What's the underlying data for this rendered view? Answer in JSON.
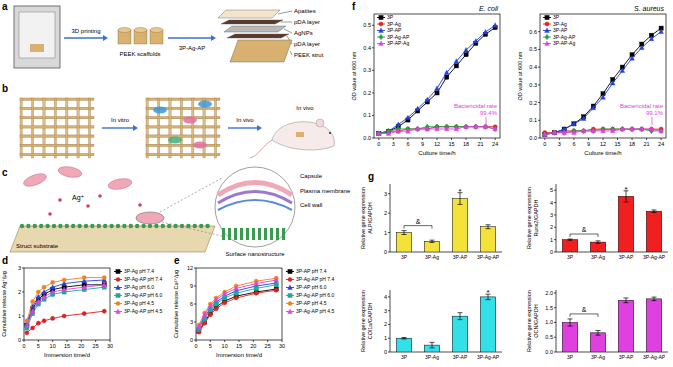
{
  "chart_data": [
    {
      "type": "line",
      "panel": "d",
      "xlabel": "Immersion time/d",
      "ylabel": "Cumulative release Ag⁺/μg",
      "x": [
        1,
        3,
        5,
        7,
        10,
        14,
        21,
        28
      ],
      "xlim": [
        0,
        30
      ],
      "xticks": [
        0,
        5,
        10,
        15,
        20,
        25,
        30
      ],
      "ylim": [
        0,
        3
      ],
      "yticks": [
        0,
        1,
        2,
        3
      ],
      "grid": false,
      "legend": "right",
      "series": [
        {
          "name": "3P-Ag pH 7.4",
          "color": "#000000",
          "marker": "square",
          "values": [
            0.6,
            1.3,
            1.7,
            1.9,
            2.1,
            2.2,
            2.3,
            2.3
          ]
        },
        {
          "name": "3P-Ag-AP pH 7.4",
          "color": "#e02020",
          "marker": "circle",
          "values": [
            0.3,
            0.5,
            0.7,
            0.8,
            0.9,
            1.0,
            1.1,
            1.2
          ]
        },
        {
          "name": "3P-Ag pH 6.0",
          "color": "#2040e0",
          "marker": "triangle",
          "values": [
            0.7,
            1.4,
            1.8,
            2.0,
            2.2,
            2.35,
            2.45,
            2.5
          ]
        },
        {
          "name": "3P-Ag-AP pH 6.0",
          "color": "#20a8a0",
          "marker": "square",
          "values": [
            0.5,
            1.1,
            1.5,
            1.7,
            1.9,
            2.0,
            2.1,
            2.2
          ]
        },
        {
          "name": "3P-Ag pH 4.5",
          "color": "#f08020",
          "marker": "circle",
          "values": [
            0.8,
            1.6,
            2.0,
            2.2,
            2.4,
            2.5,
            2.6,
            2.6
          ]
        },
        {
          "name": "3P-Ag-AP pH 4.5",
          "color": "#e040e0",
          "marker": "triangle",
          "values": [
            0.6,
            1.2,
            1.6,
            1.8,
            2.0,
            2.1,
            2.2,
            2.3
          ]
        }
      ]
    },
    {
      "type": "line",
      "panel": "e",
      "xlabel": "Immersion time/d",
      "ylabel": "Cumulative release Ca²⁺/μg",
      "x": [
        1,
        3,
        5,
        7,
        10,
        14,
        21,
        28
      ],
      "xlim": [
        0,
        30
      ],
      "xticks": [
        0,
        5,
        10,
        15,
        20,
        25,
        30
      ],
      "ylim": [
        0,
        12
      ],
      "yticks": [
        0,
        3,
        6,
        9,
        12
      ],
      "grid": false,
      "legend": "right",
      "series": [
        {
          "name": "3P-AP pH 7.4",
          "color": "#000000",
          "marker": "square",
          "values": [
            1.5,
            3,
            4.5,
            5.5,
            6.5,
            7.3,
            8,
            8.5
          ]
        },
        {
          "name": "3P-Ag-AP pH 7.4",
          "color": "#e02020",
          "marker": "circle",
          "values": [
            1.3,
            2.8,
            4.2,
            5.2,
            6.2,
            7,
            7.8,
            8.3
          ]
        },
        {
          "name": "3P-AP pH 6.0",
          "color": "#2040e0",
          "marker": "triangle",
          "values": [
            2,
            3.8,
            5.3,
            6.3,
            7.3,
            8.2,
            9,
            9.5
          ]
        },
        {
          "name": "3P-Ag-AP pH 6.0",
          "color": "#20a8a0",
          "marker": "square",
          "values": [
            1.8,
            3.5,
            5,
            6,
            7,
            7.8,
            8.6,
            9.2
          ]
        },
        {
          "name": "3P-AP pH 4.5",
          "color": "#f08020",
          "marker": "circle",
          "values": [
            2.5,
            4.5,
            6,
            7,
            8,
            9,
            9.8,
            10.3
          ]
        },
        {
          "name": "3P-Ag-AP pH 4.5",
          "color": "#e040e0",
          "marker": "triangle",
          "values": [
            2.2,
            4.2,
            5.7,
            6.7,
            7.7,
            8.6,
            9.4,
            10
          ]
        }
      ]
    },
    {
      "type": "line",
      "panel": "f",
      "title": "E. coli",
      "xlabel": "Culture time/h",
      "ylabel": "OD value at 600 nm",
      "x": [
        0,
        2,
        4,
        6,
        8,
        10,
        12,
        14,
        16,
        18,
        20,
        22,
        24
      ],
      "xlim": [
        -1,
        25
      ],
      "xticks": [
        0,
        3,
        6,
        9,
        12,
        15,
        18,
        21,
        24
      ],
      "ylim": [
        0,
        0.55
      ],
      "yticks": [
        {
          "value": 0,
          "label": "0.0"
        },
        0.1,
        0.2,
        0.3,
        0.4,
        0.5
      ],
      "grid": false,
      "legend": "top-left",
      "annotation": [
        "Bactericidal rate",
        "99.4%"
      ],
      "series": [
        {
          "name": "3P",
          "color": "#000000",
          "marker": "square",
          "values": [
            0.02,
            0.03,
            0.05,
            0.08,
            0.12,
            0.16,
            0.2,
            0.27,
            0.32,
            0.37,
            0.42,
            0.46,
            0.49
          ]
        },
        {
          "name": "3P-Ag",
          "color": "#e02020",
          "marker": "circle",
          "values": [
            0.02,
            0.03,
            0.03,
            0.04,
            0.04,
            0.04,
            0.05,
            0.05,
            0.05,
            0.05,
            0.05,
            0.05,
            0.05
          ]
        },
        {
          "name": "3P-AP",
          "color": "#2040e0",
          "marker": "triangle",
          "values": [
            0.02,
            0.03,
            0.06,
            0.09,
            0.13,
            0.17,
            0.22,
            0.29,
            0.34,
            0.39,
            0.43,
            0.47,
            0.5
          ]
        },
        {
          "name": "3P-Ag-AP",
          "color": "#20a040",
          "marker": "diamond",
          "values": [
            0.02,
            0.03,
            0.04,
            0.04,
            0.04,
            0.05,
            0.05,
            0.05,
            0.05,
            0.05,
            0.05,
            0.05,
            0.04
          ]
        },
        {
          "name": "3P-AP-Ag",
          "color": "#e040e0",
          "marker": "triangle",
          "values": [
            0.02,
            0.02,
            0.03,
            0.03,
            0.04,
            0.04,
            0.04,
            0.04,
            0.04,
            0.05,
            0.05,
            0.05,
            0.04
          ]
        }
      ]
    },
    {
      "type": "line",
      "title": "S. aureus",
      "xlabel": "Culture time/h",
      "ylabel": "OD value at 600 nm",
      "x": [
        0,
        2,
        4,
        6,
        8,
        10,
        12,
        14,
        16,
        18,
        20,
        22,
        24
      ],
      "xlim": [
        -1,
        25
      ],
      "xticks": [
        0,
        3,
        6,
        9,
        12,
        15,
        18,
        21,
        24
      ],
      "ylim": [
        0,
        0.7
      ],
      "yticks": [
        {
          "value": 0,
          "label": "0.0"
        },
        0.1,
        0.2,
        0.3,
        0.4,
        0.5,
        0.6
      ],
      "grid": false,
      "legend": "top-left",
      "annotation": [
        "Bactericidal rate",
        "99.1%"
      ],
      "series": [
        {
          "name": "3P",
          "color": "#000000",
          "marker": "square",
          "values": [
            0.02,
            0.03,
            0.05,
            0.08,
            0.12,
            0.18,
            0.25,
            0.33,
            0.4,
            0.47,
            0.53,
            0.58,
            0.62
          ]
        },
        {
          "name": "3P-Ag",
          "color": "#e02020",
          "marker": "circle",
          "values": [
            0.03,
            0.03,
            0.04,
            0.04,
            0.04,
            0.05,
            0.05,
            0.05,
            0.05,
            0.05,
            0.05,
            0.05,
            0.05
          ]
        },
        {
          "name": "3P-AP",
          "color": "#2040e0",
          "marker": "triangle",
          "values": [
            0.02,
            0.03,
            0.05,
            0.08,
            0.11,
            0.17,
            0.23,
            0.31,
            0.38,
            0.45,
            0.51,
            0.56,
            0.6
          ]
        },
        {
          "name": "3P-Ag-AP",
          "color": "#20a040",
          "marker": "diamond",
          "values": [
            0.02,
            0.03,
            0.03,
            0.04,
            0.04,
            0.04,
            0.05,
            0.05,
            0.05,
            0.05,
            0.05,
            0.04,
            0.04
          ]
        },
        {
          "name": "3P-AP-Ag",
          "color": "#e040e0",
          "marker": "triangle",
          "values": [
            0.02,
            0.03,
            0.03,
            0.03,
            0.04,
            0.04,
            0.04,
            0.04,
            0.05,
            0.05,
            0.05,
            0.05,
            0.04
          ]
        }
      ]
    },
    {
      "type": "bar",
      "panel": "g",
      "ylabel": [
        "Relative gene expression",
        "ALP/GAPDH"
      ],
      "categories": [
        "3P",
        "3P-Ag",
        "3P-AP",
        "3P-Ag-AP"
      ],
      "values": [
        1.0,
        0.55,
        2.75,
        1.3
      ],
      "errors": [
        0.1,
        0.06,
        0.3,
        0.1
      ],
      "color": "#f2e23a",
      "ylim": [
        0,
        3.5
      ],
      "yticks": [
        0,
        1,
        2,
        3
      ],
      "grid": false,
      "annotations": [
        {
          "text": "*",
          "category": "3P-AP"
        },
        {
          "text": "&"
        }
      ]
    },
    {
      "type": "bar",
      "ylabel": [
        "Relative gene expression",
        "Runx2/GAPDH"
      ],
      "categories": [
        "3P",
        "3P-Ag",
        "3P-AP",
        "3P-Ag-AP"
      ],
      "values": [
        1.0,
        0.8,
        4.5,
        3.3
      ],
      "errors": [
        0.05,
        0.1,
        0.45,
        0.1
      ],
      "color": "#f02020",
      "ylim": [
        0,
        5.5
      ],
      "yticks": [
        0,
        1,
        2,
        3,
        4,
        5
      ],
      "grid": false,
      "annotations": [
        {
          "text": "*",
          "category": "3P-AP"
        },
        {
          "text": "&"
        }
      ]
    },
    {
      "type": "bar",
      "ylabel": [
        "Relative gene expression",
        "COl1a/GAPDH"
      ],
      "categories": [
        "3P",
        "3P-Ag",
        "3P-AP",
        "3P-Ag-AP"
      ],
      "values": [
        1.0,
        0.5,
        2.6,
        4.0
      ],
      "errors": [
        0.05,
        0.2,
        0.25,
        0.2
      ],
      "color": "#33e0e8",
      "ylim": [
        0,
        4.5
      ],
      "yticks": [
        0,
        1,
        2,
        3,
        4
      ],
      "grid": false,
      "annotations": [
        {
          "text": "*",
          "category": "3P-Ag-AP"
        }
      ]
    },
    {
      "type": "bar",
      "ylabel": [
        "Relative gene expression",
        "OCN/GAPDH"
      ],
      "categories": [
        "3P",
        "3P-Ag",
        "3P-AP",
        "3P-Ag-AP"
      ],
      "values": [
        1.0,
        0.65,
        1.75,
        1.8
      ],
      "errors": [
        0.12,
        0.08,
        0.08,
        0.06
      ],
      "color": "#e040e0",
      "ylim": [
        0,
        2.1
      ],
      "yticks": [
        {
          "value": 0,
          "label": "0.0"
        },
        0.5,
        {
          "value": 1,
          "label": "1.0"
        },
        1.5,
        {
          "value": 2,
          "label": "2.0"
        }
      ],
      "grid": false,
      "annotations": [
        {
          "text": "&"
        }
      ]
    }
  ],
  "diagram": {
    "a": {
      "panel": "a",
      "labels": [
        "3D printing",
        "PEEK scaffolds",
        "3P-Ag-AP"
      ],
      "layers": [
        "Apatites",
        "pDA layer",
        "AgNPs",
        "pDA layer",
        "PEEK strut"
      ]
    },
    "b": {
      "panel": "b",
      "labels": [
        "In vitro",
        "In vivo",
        "In vivo"
      ]
    },
    "c": {
      "panel": "c",
      "ion": "Ag⁺",
      "parts": [
        "Capsule",
        "Plasma membrane",
        "Cell wall"
      ],
      "surface": "Surface nanostructure",
      "substrate": "Struct substrate"
    }
  }
}
